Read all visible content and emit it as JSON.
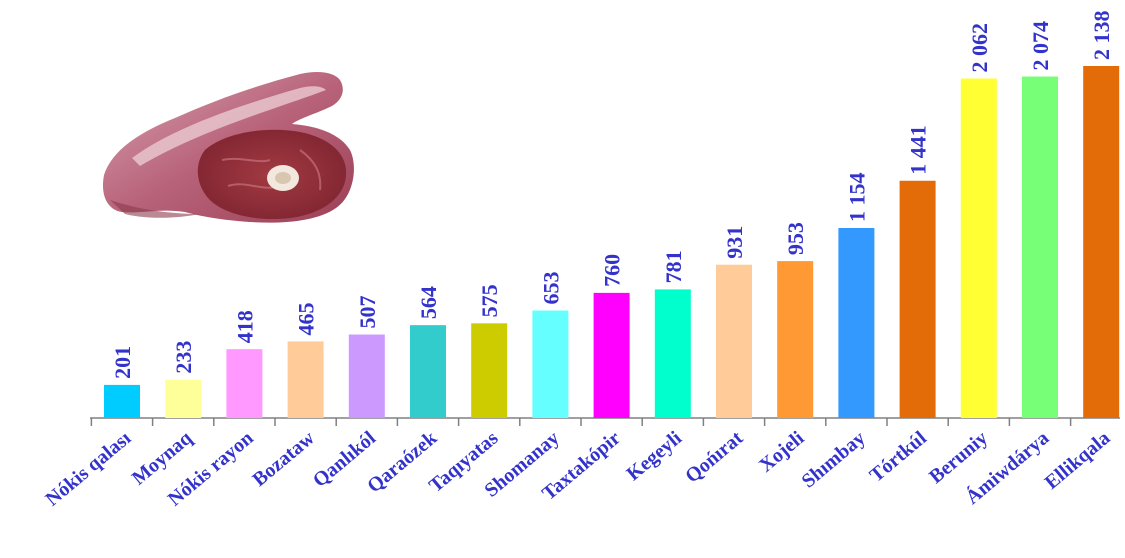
{
  "chart_data": {
    "type": "bar",
    "title": "",
    "xlabel": "",
    "ylabel": "",
    "ylim": [
      0,
      2300
    ],
    "grid": false,
    "legend": "none",
    "categories": [
      "Nókis qalası",
      "Moynaq",
      "Nókis rayon",
      "Bozataw",
      "Qanlıkól",
      "Qaraózek",
      "Taqıyatas",
      "Shomanay",
      "Taxtakópir",
      "Kegeyli",
      "Qońırat",
      "Xojeli",
      "Shımbay",
      "Tórtkúl",
      "Beruniy",
      "Ámiwdárya",
      "Ellikqala"
    ],
    "values": [
      201,
      233,
      418,
      465,
      507,
      564,
      575,
      653,
      760,
      781,
      931,
      953,
      1154,
      1441,
      2062,
      2074,
      2138
    ],
    "value_labels": [
      "201",
      "233",
      "418",
      "465",
      "507",
      "564",
      "575",
      "653",
      "760",
      "781",
      "931",
      "953",
      "1 154",
      "1 441",
      "2 062",
      "2 074",
      "2 138"
    ],
    "bar_colors": [
      "#00ccff",
      "#ffff99",
      "#ff99ff",
      "#ffcc99",
      "#cc99ff",
      "#33cccc",
      "#cccc00",
      "#66ffff",
      "#ff00ff",
      "#00ffcc",
      "#ffcc99",
      "#ff9933",
      "#3399ff",
      "#e36c09",
      "#ffff33",
      "#77ff77",
      "#e36c09"
    ],
    "label_color": "#3333cc",
    "axis_color": "#808080"
  },
  "image": {
    "subject": "meat-photo"
  }
}
